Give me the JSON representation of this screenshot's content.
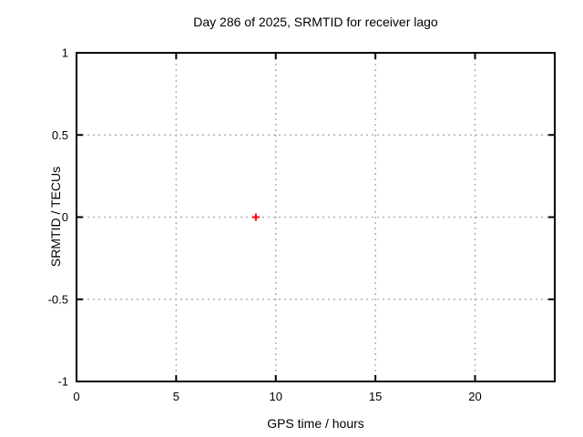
{
  "chart_data": {
    "type": "scatter",
    "title": "Day 286 of 2025, SRMTID for receiver lago",
    "xlabel": "GPS time / hours",
    "ylabel": "SRMTID / TECUs",
    "xlim": [
      0,
      24
    ],
    "ylim": [
      -1,
      1
    ],
    "xticks": [
      0,
      5,
      10,
      15,
      20
    ],
    "yticks": [
      1,
      0.5,
      0,
      -0.5,
      -1
    ],
    "ytick_labels": [
      "1",
      "0.5",
      "0",
      "-0.5",
      "-1"
    ],
    "xtick_labels": [
      "0",
      "5",
      "10",
      "15",
      "20"
    ],
    "grid": true,
    "legend": false,
    "series": [
      {
        "name": "SRMTID",
        "marker": "plus",
        "color": "#ff0000",
        "points": [
          {
            "x": 9.0,
            "y": 0.0
          }
        ]
      }
    ],
    "colors": {
      "background": "#ffffff",
      "border": "#000000",
      "grid": "#b0b0b0",
      "text": "#000000"
    }
  }
}
